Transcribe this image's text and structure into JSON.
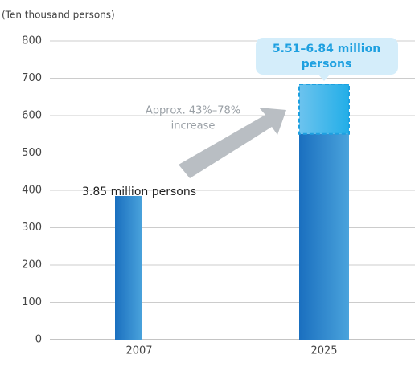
{
  "chart_data": {
    "type": "bar",
    "y_axis_label": "(Ten thousand persons)",
    "categories": [
      "2007",
      "2025"
    ],
    "values": [
      385,
      551
    ],
    "upper_values": [
      null,
      133
    ],
    "color": "#1f7fcb",
    "range_color": "#2fb1ea",
    "ylim": [
      0,
      800
    ],
    "yticks": [
      0,
      100,
      200,
      300,
      400,
      500,
      600,
      700,
      800
    ],
    "grid": true,
    "annotations": {
      "bar_2007": "3.85 million persons",
      "bar_2025": [
        "5.51–6.84 million",
        "persons"
      ],
      "increase": [
        "Approx. 43%–78%",
        "increase"
      ]
    }
  }
}
